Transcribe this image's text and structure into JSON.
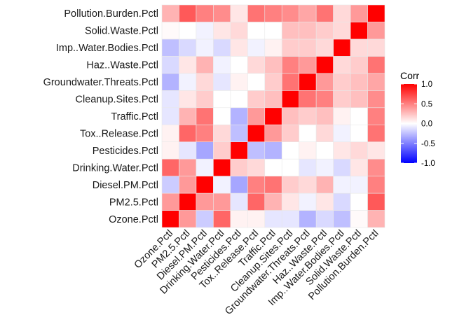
{
  "chart_data": {
    "type": "heatmap",
    "variables": [
      "Ozone.Pctl",
      "PM2.5.Pctl",
      "Diesel.PM.Pctl",
      "Drinking.Water.Pctl",
      "Pesticides.Pctl",
      "Tox..Release.Pctl",
      "Traffic.Pctl",
      "Cleanup.Sites.Pctl",
      "Groundwater.Threats.Pctl",
      "Haz..Waste.Pctl",
      "Imp..Water.Bodies.Pctl",
      "Solid.Waste.Pctl",
      "Pollution.Burden.Pctl"
    ],
    "matrix": [
      [
        1.0,
        0.4,
        -0.2,
        0.6,
        0.05,
        0.05,
        -0.1,
        -0.1,
        -0.3,
        -0.15,
        -0.25,
        0.02,
        0.3
      ],
      [
        0.4,
        1.0,
        0.4,
        0.4,
        -0.1,
        0.6,
        0.3,
        0.1,
        -0.05,
        0.1,
        -0.15,
        0.0,
        0.65
      ],
      [
        -0.2,
        0.4,
        1.0,
        -0.05,
        -0.35,
        0.5,
        0.55,
        0.2,
        0.15,
        0.3,
        -0.05,
        -0.05,
        0.5
      ],
      [
        0.6,
        0.4,
        -0.05,
        1.0,
        0.2,
        0.15,
        0.0,
        0.0,
        -0.1,
        -0.05,
        -0.15,
        0.1,
        0.45
      ],
      [
        0.05,
        -0.1,
        -0.35,
        0.2,
        1.0,
        -0.25,
        -0.3,
        0.0,
        0.05,
        0.0,
        0.1,
        0.15,
        0.1
      ],
      [
        0.05,
        0.6,
        0.5,
        0.15,
        -0.25,
        1.0,
        0.4,
        0.2,
        0.0,
        0.15,
        -0.05,
        0.0,
        0.55
      ],
      [
        -0.1,
        0.3,
        0.55,
        0.0,
        -0.3,
        0.4,
        1.0,
        0.25,
        0.2,
        0.25,
        0.05,
        0.0,
        0.5
      ],
      [
        -0.1,
        0.1,
        0.2,
        0.0,
        0.0,
        0.2,
        0.25,
        1.0,
        0.55,
        0.5,
        0.2,
        0.25,
        0.45
      ],
      [
        -0.3,
        -0.05,
        0.15,
        -0.1,
        0.05,
        0.0,
        0.2,
        0.55,
        1.0,
        0.4,
        0.2,
        0.25,
        0.35
      ],
      [
        -0.15,
        0.1,
        0.3,
        -0.05,
        0.0,
        0.15,
        0.25,
        0.5,
        0.4,
        1.0,
        0.15,
        0.2,
        0.55
      ],
      [
        -0.25,
        -0.15,
        -0.05,
        -0.15,
        0.1,
        -0.05,
        0.05,
        0.2,
        0.2,
        0.15,
        1.0,
        0.15,
        0.15
      ],
      [
        0.02,
        0.0,
        -0.05,
        0.1,
        0.15,
        0.0,
        0.0,
        0.25,
        0.25,
        0.2,
        0.15,
        1.0,
        0.4
      ],
      [
        0.3,
        0.65,
        0.5,
        0.45,
        0.1,
        0.55,
        0.5,
        0.45,
        0.35,
        0.55,
        0.15,
        0.4,
        1.0
      ]
    ],
    "legend": {
      "title": "Corr",
      "placement": "right",
      "ticks": [
        1.0,
        0.5,
        0.0,
        -0.5,
        -1.0
      ],
      "tick_labels": [
        "1.0",
        "0.5",
        "0.0",
        "-0.5",
        "-1.0"
      ],
      "range": [
        -1,
        1
      ]
    },
    "colors": {
      "low": "#0000ff",
      "mid": "#ffffff",
      "high": "#ff0000"
    },
    "grid": false
  }
}
